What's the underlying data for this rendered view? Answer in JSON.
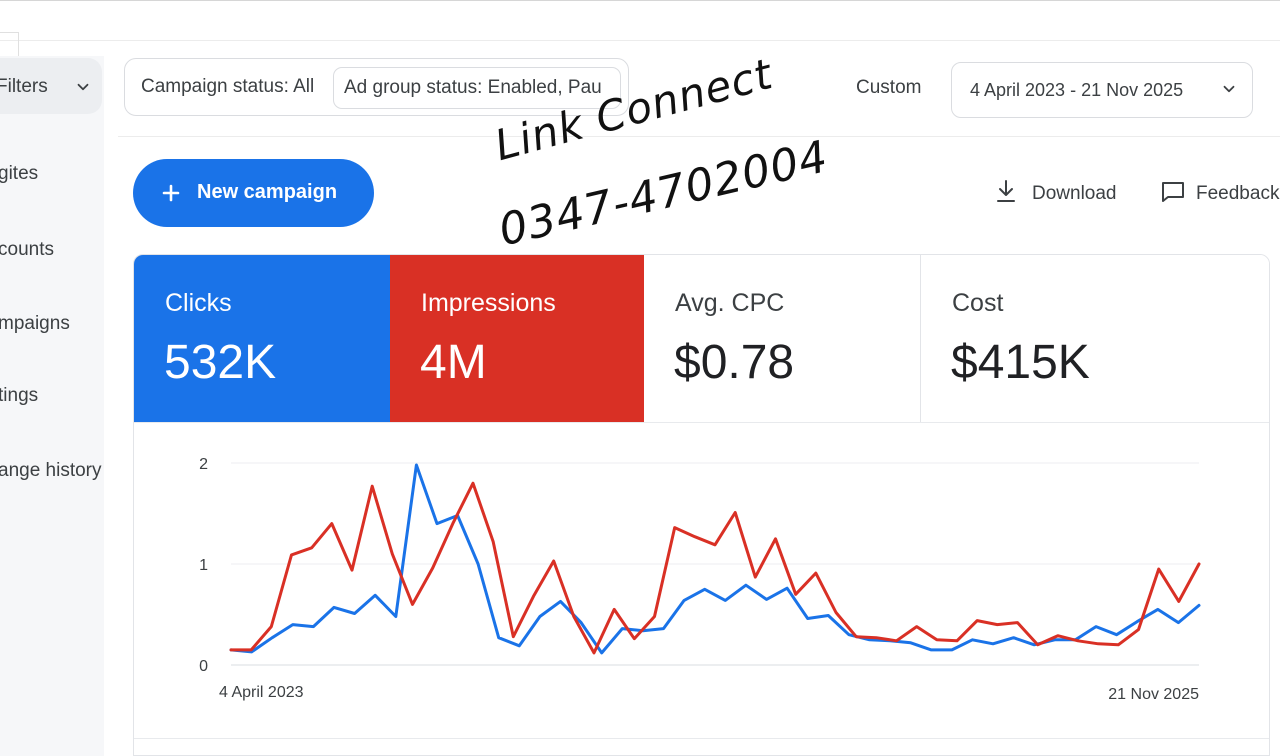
{
  "sidebar": {
    "filters_label": "Filters",
    "items": [
      {
        "label": "gites"
      },
      {
        "label": "counts"
      },
      {
        "label": "mpaigns"
      },
      {
        "label": "tings"
      },
      {
        "label": "ange history"
      }
    ]
  },
  "filters": {
    "campaign_status": "Campaign status: All",
    "ad_group_status": "Ad group status: Enabled, Pau"
  },
  "date_range": {
    "label": "Custom",
    "value": "4 April 2023 - 21 Nov 2025"
  },
  "toolbar": {
    "new_campaign_label": "New campaign",
    "download_label": "Download",
    "feedback_label": "Feedback"
  },
  "watermark": {
    "line1": "Link Connect",
    "line2": "0347-4702004"
  },
  "metrics": [
    {
      "label": "Clicks",
      "value": "532K",
      "color": "#1a73e8"
    },
    {
      "label": "Impressions",
      "value": "4M",
      "color": "#d93025"
    },
    {
      "label": "Avg. CPC",
      "value": "$0.78"
    },
    {
      "label": "Cost",
      "value": "$415K"
    }
  ],
  "chart_data": {
    "type": "line",
    "x_start_label": "4 April 2023",
    "x_end_label": "21 Nov 2025",
    "y_ticks": [
      0,
      1,
      2
    ],
    "ylim": [
      0,
      2
    ],
    "grid": true,
    "series": [
      {
        "color": "#1a73e8",
        "values": [
          0.15,
          0.13,
          0.27,
          0.4,
          0.38,
          0.57,
          0.51,
          0.69,
          0.48,
          1.98,
          1.4,
          1.48,
          1.0,
          0.27,
          0.19,
          0.48,
          0.63,
          0.42,
          0.12,
          0.36,
          0.34,
          0.36,
          0.64,
          0.75,
          0.64,
          0.79,
          0.65,
          0.76,
          0.46,
          0.49,
          0.3,
          0.25,
          0.24,
          0.22,
          0.15,
          0.15,
          0.25,
          0.21,
          0.27,
          0.2,
          0.25,
          0.25,
          0.38,
          0.3,
          0.43,
          0.55,
          0.42,
          0.59
        ]
      },
      {
        "color": "#d93025",
        "values": [
          0.15,
          0.15,
          0.38,
          1.09,
          1.16,
          1.4,
          0.94,
          1.77,
          1.1,
          0.6,
          0.96,
          1.4,
          1.8,
          1.22,
          0.28,
          0.68,
          1.03,
          0.48,
          0.12,
          0.55,
          0.26,
          0.48,
          1.36,
          1.27,
          1.19,
          1.51,
          0.87,
          1.25,
          0.7,
          0.91,
          0.52,
          0.28,
          0.27,
          0.24,
          0.38,
          0.25,
          0.24,
          0.44,
          0.4,
          0.42,
          0.2,
          0.29,
          0.24,
          0.21,
          0.2,
          0.35,
          0.95,
          0.63,
          1.0
        ]
      }
    ]
  }
}
